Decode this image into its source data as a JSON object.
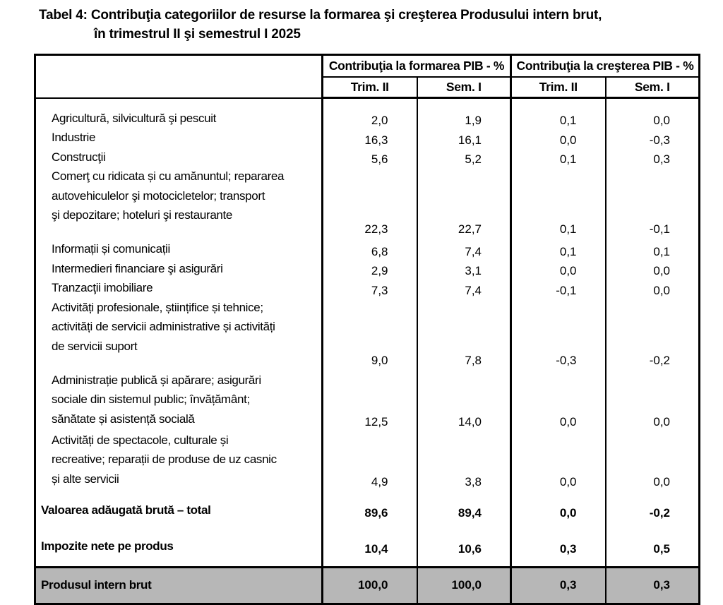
{
  "title": {
    "line1": "Tabel 4: Contribuţia categoriilor de resurse la formarea şi creşterea Produsului intern brut,",
    "line2": "în trimestrul II şi semestrul I 2025"
  },
  "colors": {
    "gdp_row_bg": "#b7b7b7",
    "border": "#000000",
    "background": "#ffffff"
  },
  "table": {
    "group_headers": [
      "Contribuţia la formarea PIB - %",
      "Contribuţia la creşterea PIB - %"
    ],
    "sub_headers": [
      "Trim. II",
      "Sem. I",
      "Trim. II",
      "Sem. I"
    ],
    "rows": [
      {
        "label": "Agricultură, silvicultură şi pescuit",
        "values": [
          "2,0",
          "1,9",
          "0,1",
          "0,0"
        ],
        "type": "item"
      },
      {
        "label": "Industrie",
        "values": [
          "16,3",
          "16,1",
          "0,0",
          "-0,3"
        ],
        "type": "item"
      },
      {
        "label": "Construcţii",
        "values": [
          "5,6",
          "5,2",
          "0,1",
          "0,3"
        ],
        "type": "item"
      },
      {
        "label": "Comerţ cu ridicata și cu amănuntul; repararea\nautovehiculelor şi motocicletelor;  transport\nşi depozitare; hoteluri şi restaurante",
        "values": [
          "22,3",
          "22,7",
          "0,1",
          "-0,1"
        ],
        "type": "item-wrap-gap"
      },
      {
        "label": "Informații și comunicații",
        "values": [
          "6,8",
          "7,4",
          "0,1",
          "0,1"
        ],
        "type": "item"
      },
      {
        "label": "Intermedieri financiare şi asigurări",
        "values": [
          "2,9",
          "3,1",
          "0,0",
          "0,0"
        ],
        "type": "item"
      },
      {
        "label": "Tranzacţii imobiliare",
        "values": [
          "7,3",
          "7,4",
          "-0,1",
          "0,0"
        ],
        "type": "item"
      },
      {
        "label": "Activități profesionale, științifice și tehnice;\nactivități de servicii administrative și activități\nde servicii suport",
        "values": [
          "9,0",
          "7,8",
          "-0,3",
          "-0,2"
        ],
        "type": "item-wrap-gap"
      },
      {
        "label": "Administrație publică și apărare; asigurări\nsociale din sistemul public; învățământ;\nsănătate și asistență socială",
        "values": [
          "12,5",
          "14,0",
          "0,0",
          "0,0"
        ],
        "type": "item-wrap"
      },
      {
        "label": "Activități de spectacole, culturale și\nrecreative; reparații de produse de uz casnic\nși alte servicii",
        "values": [
          "4,9",
          "3,8",
          "0,0",
          "0,0"
        ],
        "type": "item-wrap"
      },
      {
        "label": "Valoarea adăugată brută – total",
        "values": [
          "89,6",
          "89,4",
          "0,0",
          "-0,2"
        ],
        "type": "total"
      },
      {
        "label": "Impozite nete pe produs",
        "values": [
          "10,4",
          "10,6",
          "0,3",
          "0,5"
        ],
        "type": "total last-total"
      },
      {
        "label": "Produsul intern brut",
        "values": [
          "100,0",
          "100,0",
          "0,3",
          "0,3"
        ],
        "type": "gdp"
      }
    ]
  }
}
